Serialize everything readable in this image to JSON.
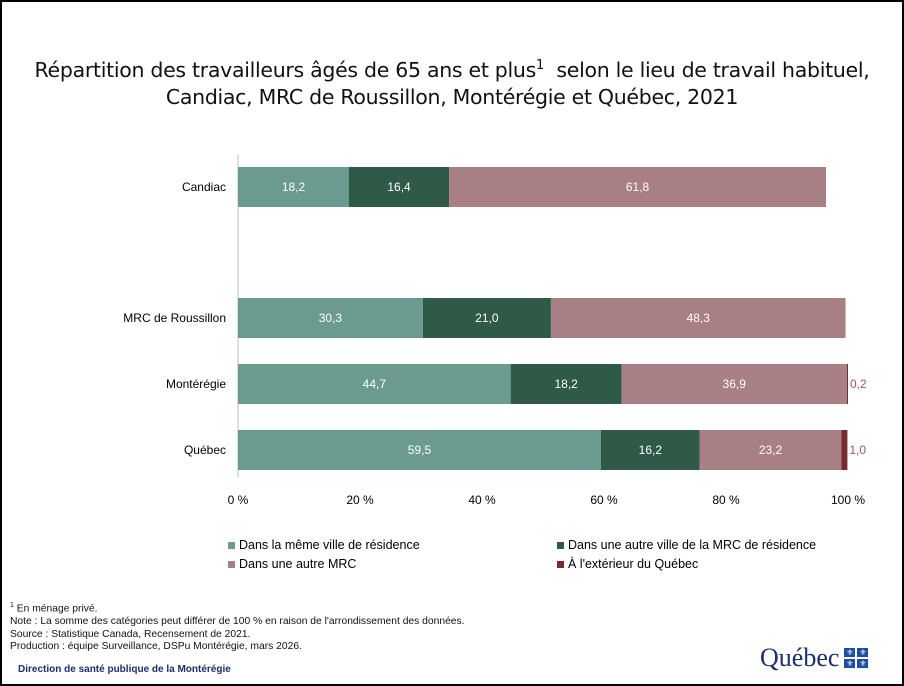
{
  "title_line1": "Répartition des travailleurs âgés de 65 ans et plus",
  "title_sup": "1",
  "title_line1_end": "  selon le lieu de travail habituel,",
  "title_line2": "Candiac, MRC de Roussillon, Montérégie et Québec, 2021",
  "colors": {
    "meme_ville": "#6b9a90",
    "autre_ville_mrc": "#2e5a47",
    "autre_mrc": "#a87f85",
    "exterieur": "#7a2a2f"
  },
  "chart_data": {
    "type": "bar",
    "orientation": "horizontal",
    "stacked": true,
    "categories": [
      "Candiac",
      "MRC de Roussillon",
      "Montérégie",
      "Québec"
    ],
    "series": [
      {
        "name": "Dans la même ville de résidence",
        "values": [
          18.2,
          30.3,
          44.7,
          59.5
        ],
        "labels": [
          "18,2",
          "30,3",
          "44,7",
          "59,5"
        ]
      },
      {
        "name": "Dans une autre ville de la MRC de résidence",
        "values": [
          16.4,
          21.0,
          18.2,
          16.2
        ],
        "labels": [
          "16,4",
          "21,0",
          "18,2",
          "16,2"
        ]
      },
      {
        "name": "Dans une autre MRC",
        "values": [
          61.8,
          48.3,
          36.9,
          23.2
        ],
        "labels": [
          "61,8",
          "48,3",
          "36,9",
          "23,2"
        ]
      },
      {
        "name": "À l'extérieur du Québec",
        "values": [
          0,
          0,
          0.2,
          1.0
        ],
        "labels": [
          "",
          "",
          "0,2",
          "1,0"
        ]
      }
    ],
    "xlim": [
      0,
      100
    ],
    "x_ticks": [
      "0 %",
      "20 %",
      "40 %",
      "60 %",
      "80 %",
      "100 %"
    ],
    "legend_position": "bottom"
  },
  "notes": {
    "sup": "1",
    "line1": " En ménage privé.",
    "line2": "Note : La somme des catégories peut différer de 100 % en raison de l'arrondissement des données.",
    "line3": "Source : Statistique Canada, Recensement de 2021.",
    "line4": "Production : équipe Surveillance, DSPu Montérégie, mars 2026."
  },
  "footer_org": "Direction de santé publique de la Montérégie",
  "logo_text": "Québec",
  "logo_icon": "fleur-de-lis-flag-icon"
}
